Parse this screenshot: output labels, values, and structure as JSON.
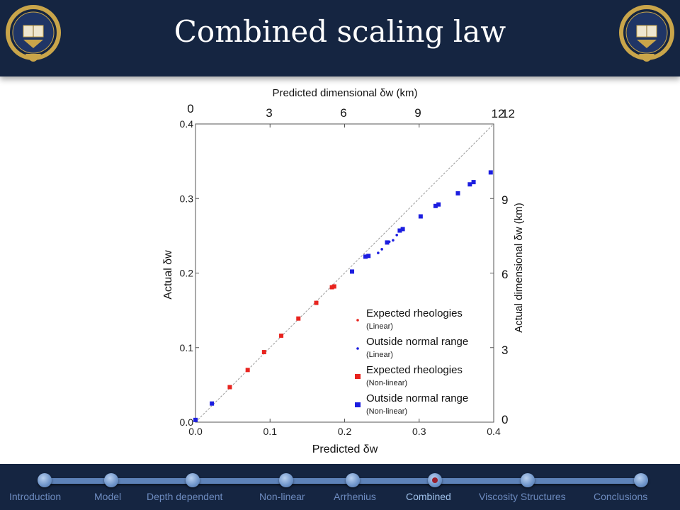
{
  "slide": {
    "title": "Combined scaling law"
  },
  "nav": {
    "items": [
      {
        "label": "Introduction",
        "active": false
      },
      {
        "label": "Model",
        "active": false
      },
      {
        "label": "Depth dependent",
        "active": false
      },
      {
        "label": "Non-linear",
        "active": false
      },
      {
        "label": "Arrhenius",
        "active": false
      },
      {
        "label": "Combined",
        "active": true
      },
      {
        "label": "Viscosity Structures",
        "active": false
      },
      {
        "label": "Conclusions",
        "active": false
      }
    ]
  },
  "chart_data": {
    "type": "scatter",
    "xlabel": "Predicted δw",
    "ylabel": "Actual δw",
    "top_label": "Predicted dimensional δw (km)",
    "right_label": "Actual dimensional δw (km)",
    "xlim": [
      0,
      0.4
    ],
    "ylim": [
      0,
      0.4
    ],
    "x_ticks": [
      "0.0",
      "0.1",
      "0.2",
      "0.3",
      "0.4"
    ],
    "y_ticks": [
      "0.0",
      "0.1",
      "0.2",
      "0.3",
      "0.4"
    ],
    "top_ticks": [
      "0",
      "3",
      "6",
      "9",
      "12"
    ],
    "right_ticks": [
      "0",
      "3",
      "6",
      "9",
      "12"
    ],
    "reference_line": "y = x",
    "grid": false,
    "legend_position": "lower-right",
    "colors": {
      "red": "#e8241f",
      "blue": "#1c1ee0"
    },
    "series": [
      {
        "name": "Expected rheologies",
        "sub": "(Linear)",
        "marker": "small",
        "color": "#e8241f",
        "x": [],
        "y": []
      },
      {
        "name": "Outside normal range",
        "sub": "(Linear)",
        "marker": "small",
        "color": "#1c1ee0",
        "x": [
          0.245,
          0.25,
          0.26,
          0.265,
          0.27
        ],
        "y": [
          0.227,
          0.232,
          0.242,
          0.244,
          0.251
        ]
      },
      {
        "name": "Expected rheologies",
        "sub": "(Non-linear)",
        "marker": "large",
        "color": "#e8241f",
        "x": [
          0.046,
          0.07,
          0.092,
          0.115,
          0.138,
          0.162,
          0.183,
          0.186
        ],
        "y": [
          0.047,
          0.07,
          0.094,
          0.116,
          0.139,
          0.16,
          0.181,
          0.182
        ]
      },
      {
        "name": "Outside normal range",
        "sub": "(Non-linear)",
        "marker": "large",
        "color": "#1c1ee0",
        "x": [
          0.0,
          0.022,
          0.21,
          0.228,
          0.232,
          0.257,
          0.274,
          0.278,
          0.302,
          0.322,
          0.326,
          0.352,
          0.368,
          0.373,
          0.396
        ],
        "y": [
          0.003,
          0.025,
          0.202,
          0.222,
          0.223,
          0.241,
          0.257,
          0.259,
          0.276,
          0.29,
          0.292,
          0.307,
          0.319,
          0.322,
          0.335
        ]
      }
    ]
  }
}
